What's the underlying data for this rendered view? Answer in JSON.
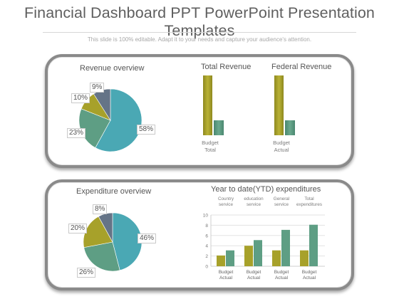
{
  "header": {
    "title": "Financial Dashboard PPT PowerPoint Presentation Templates",
    "subtitle": "This slide is 100% editable. Adapt it to your needs and capture your audience's attention."
  },
  "colors": {
    "teal": "#4aa8b4",
    "green": "#5e9e84",
    "olive": "#a7a12a",
    "slate": "#657487",
    "border": "#8a8a8a"
  },
  "chart_data": [
    {
      "type": "pie",
      "title": "Revenue overview",
      "slices": [
        {
          "label": "58%",
          "value": 58,
          "color": "#4aa8b4"
        },
        {
          "label": "23%",
          "value": 23,
          "color": "#5e9e84"
        },
        {
          "label": "10%",
          "value": 10,
          "color": "#a7a12a"
        },
        {
          "label": "9%",
          "value": 9,
          "color": "#657487"
        }
      ]
    },
    {
      "type": "bar",
      "title": "Total Revenue",
      "categories": [
        "Budget",
        "Total"
      ],
      "values": [
        100,
        25
      ]
    },
    {
      "type": "bar",
      "title": "Federal Revenue",
      "categories": [
        "Budget",
        "Actual"
      ],
      "values": [
        100,
        25
      ]
    },
    {
      "type": "pie",
      "title": "Expenditure overview",
      "slices": [
        {
          "label": "46%",
          "value": 46,
          "color": "#4aa8b4"
        },
        {
          "label": "26%",
          "value": 26,
          "color": "#5e9e84"
        },
        {
          "label": "20%",
          "value": 20,
          "color": "#a7a12a"
        },
        {
          "label": "8%",
          "value": 8,
          "color": "#657487"
        }
      ]
    },
    {
      "type": "bar",
      "title": "Year to date(YTD) expenditures",
      "categories": [
        "Country service",
        "education service",
        "General service",
        "Total expenditures"
      ],
      "category_labels": [
        [
          "Country",
          "service"
        ],
        [
          "education",
          "service"
        ],
        [
          "General",
          "service"
        ],
        [
          "Total",
          "expenditures"
        ]
      ],
      "x_tick_labels": [
        [
          "Budget",
          "Actual"
        ],
        [
          "Budget",
          "Actual"
        ],
        [
          "Budget",
          "Actual"
        ],
        [
          "Budget",
          "Actual"
        ]
      ],
      "series": [
        {
          "values": [
            2.1,
            4,
            3.1,
            3.1
          ],
          "color": "#a7a12a"
        },
        {
          "values": [
            3.1,
            5.1,
            7.1,
            8.1
          ],
          "color": "#5e9e84"
        }
      ],
      "yticks": [
        "0",
        "2",
        "4",
        "6",
        "8",
        "10"
      ],
      "ylim": [
        0,
        10
      ],
      "grid": true
    }
  ]
}
